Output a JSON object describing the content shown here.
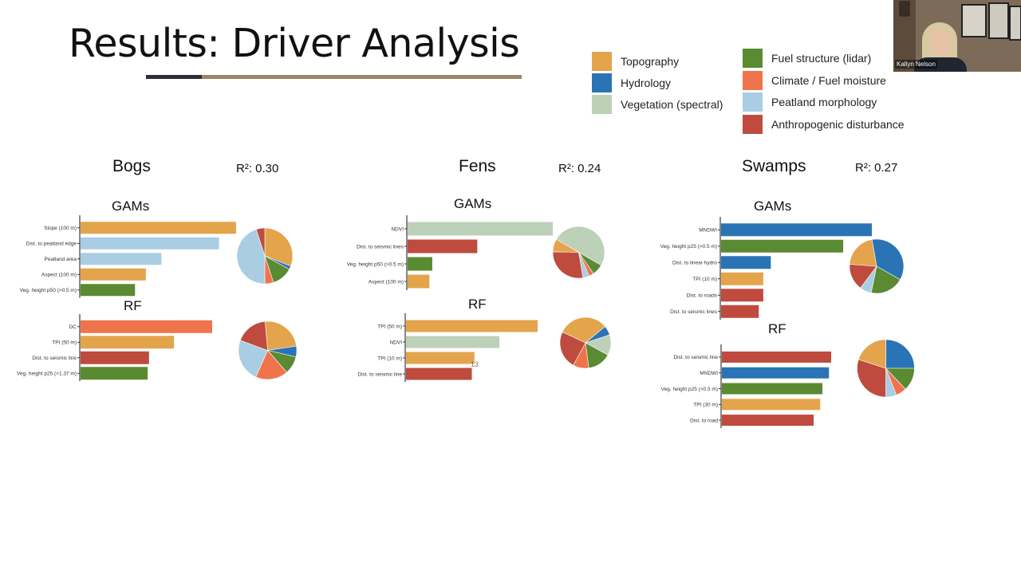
{
  "slide": {
    "title": "Results: Driver Analysis"
  },
  "colors": {
    "topography": "#e3a44c",
    "hydrology": "#2a74b5",
    "vegetation": "#bdd0b8",
    "fuel_structure": "#5a8a32",
    "climate": "#f0744b",
    "peatland": "#a9cde3",
    "anthropogenic": "#be4b3e"
  },
  "legend": [
    {
      "label": "Topography",
      "color": "#e3a44c"
    },
    {
      "label": "Hydrology",
      "color": "#2a74b5"
    },
    {
      "label": "Vegetation (spectral)",
      "color": "#bdd0b8"
    },
    {
      "label": "Fuel structure (lidar)",
      "color": "#5a8a32"
    },
    {
      "label": "Climate / Fuel moisture",
      "color": "#f0744b"
    },
    {
      "label": "Peatland morphology",
      "color": "#a9cde3"
    },
    {
      "label": "Anthropogenic disturbance",
      "color": "#be4b3e"
    }
  ],
  "headings": {
    "bogs": "Bogs",
    "bogs_r2": "R²: 0.30",
    "fens": "Fens",
    "fens_r2": "R²: 0.24",
    "swamps": "Swamps",
    "swamps_r2": "R²: 0.27",
    "gams": "GAMs",
    "rf": "RF"
  },
  "annotation": "13",
  "video": {
    "name": "Kallyn Nelson"
  },
  "chart_data": [
    {
      "type": "bar",
      "id": "bogs-gam",
      "title": "GAMs",
      "categories": [
        "Slope (100 m)",
        "Dist. to peatland edge",
        "Peatland area",
        "Aspect (100 m)",
        "Veg. height p50 (>0.5 m)"
      ],
      "values": [
        1.0,
        0.89,
        0.52,
        0.42,
        0.35
      ],
      "groups": [
        "topography",
        "peatland",
        "peatland",
        "topography",
        "fuel_structure"
      ]
    },
    {
      "type": "pie",
      "id": "bogs-gam-pie",
      "slices": [
        {
          "group": "topography",
          "value": 0.31
        },
        {
          "group": "hydrology",
          "value": 0.02
        },
        {
          "group": "fuel_structure",
          "value": 0.12
        },
        {
          "group": "climate",
          "value": 0.05
        },
        {
          "group": "peatland",
          "value": 0.45
        },
        {
          "group": "anthropogenic",
          "value": 0.05
        }
      ]
    },
    {
      "type": "bar",
      "id": "bogs-rf",
      "title": "RF",
      "categories": [
        "DC",
        "TPI (50 m)",
        "Dist. to seismic line",
        "Veg. height p25 (>1.37 m)"
      ],
      "values": [
        1.0,
        0.71,
        0.52,
        0.51
      ],
      "groups": [
        "climate",
        "topography",
        "anthropogenic",
        "fuel_structure"
      ]
    },
    {
      "type": "pie",
      "id": "bogs-rf-pie",
      "slices": [
        {
          "group": "topography",
          "value": 0.24
        },
        {
          "group": "hydrology",
          "value": 0.06
        },
        {
          "group": "fuel_structure",
          "value": 0.1
        },
        {
          "group": "climate",
          "value": 0.18
        },
        {
          "group": "peatland",
          "value": 0.24
        },
        {
          "group": "anthropogenic",
          "value": 0.18
        }
      ]
    },
    {
      "type": "bar",
      "id": "fens-gam",
      "title": "GAMs",
      "categories": [
        "NDVI",
        "Dist. to seismic lines",
        "Veg. height p50 (>0.5 m)",
        "Aspect (100 m)"
      ],
      "values": [
        1.0,
        0.48,
        0.17,
        0.15
      ],
      "groups": [
        "vegetation",
        "anthropogenic",
        "fuel_structure",
        "topography"
      ]
    },
    {
      "type": "pie",
      "id": "fens-gam-pie",
      "slices": [
        {
          "group": "vegetation",
          "value": 0.5
        },
        {
          "group": "fuel_structure",
          "value": 0.07
        },
        {
          "group": "climate",
          "value": 0.03
        },
        {
          "group": "peatland",
          "value": 0.04
        },
        {
          "group": "anthropogenic",
          "value": 0.28
        },
        {
          "group": "topography",
          "value": 0.08
        }
      ]
    },
    {
      "type": "bar",
      "id": "fens-rf",
      "title": "RF",
      "categories": [
        "TPI (50 m)",
        "NDVI",
        "TPI (10 m)",
        "Dist. to seismic line"
      ],
      "values": [
        1.0,
        0.71,
        0.52,
        0.5
      ],
      "groups": [
        "topography",
        "vegetation",
        "topography",
        "anthropogenic"
      ]
    },
    {
      "type": "pie",
      "id": "fens-rf-pie",
      "slices": [
        {
          "group": "topography",
          "value": 0.32
        },
        {
          "group": "hydrology",
          "value": 0.06
        },
        {
          "group": "vegetation",
          "value": 0.13
        },
        {
          "group": "fuel_structure",
          "value": 0.15
        },
        {
          "group": "climate",
          "value": 0.1
        },
        {
          "group": "anthropogenic",
          "value": 0.24
        }
      ]
    },
    {
      "type": "bar",
      "id": "swamps-gam",
      "title": "GAMs",
      "categories": [
        "MNDWI",
        "Veg. height p25 (>0.5 m)",
        "Dist. to linear hydro",
        "TPI (10 m)",
        "Dist. to roads",
        "Dist. to seismic lines"
      ],
      "values": [
        1.0,
        0.81,
        0.33,
        0.28,
        0.28,
        0.25
      ],
      "groups": [
        "hydrology",
        "fuel_structure",
        "hydrology",
        "topography",
        "anthropogenic",
        "anthropogenic"
      ]
    },
    {
      "type": "pie",
      "id": "swamps-gam-pie",
      "slices": [
        {
          "group": "hydrology",
          "value": 0.36
        },
        {
          "group": "fuel_structure",
          "value": 0.2
        },
        {
          "group": "peatland",
          "value": 0.07
        },
        {
          "group": "anthropogenic",
          "value": 0.16
        },
        {
          "group": "topography",
          "value": 0.21
        }
      ]
    },
    {
      "type": "bar",
      "id": "swamps-rf",
      "title": "RF",
      "categories": [
        "Dist. to seismic line",
        "MNDWI",
        "Veg. height p25 (>0.5 m)",
        "TPI (30 m)",
        "Dist. to road"
      ],
      "values": [
        1.0,
        0.98,
        0.92,
        0.9,
        0.84
      ],
      "groups": [
        "anthropogenic",
        "hydrology",
        "fuel_structure",
        "topography",
        "anthropogenic"
      ]
    },
    {
      "type": "pie",
      "id": "swamps-rf-pie",
      "slices": [
        {
          "group": "hydrology",
          "value": 0.25
        },
        {
          "group": "fuel_structure",
          "value": 0.13
        },
        {
          "group": "climate",
          "value": 0.06
        },
        {
          "group": "peatland",
          "value": 0.06
        },
        {
          "group": "anthropogenic",
          "value": 0.3
        },
        {
          "group": "topography",
          "value": 0.2
        }
      ]
    }
  ]
}
